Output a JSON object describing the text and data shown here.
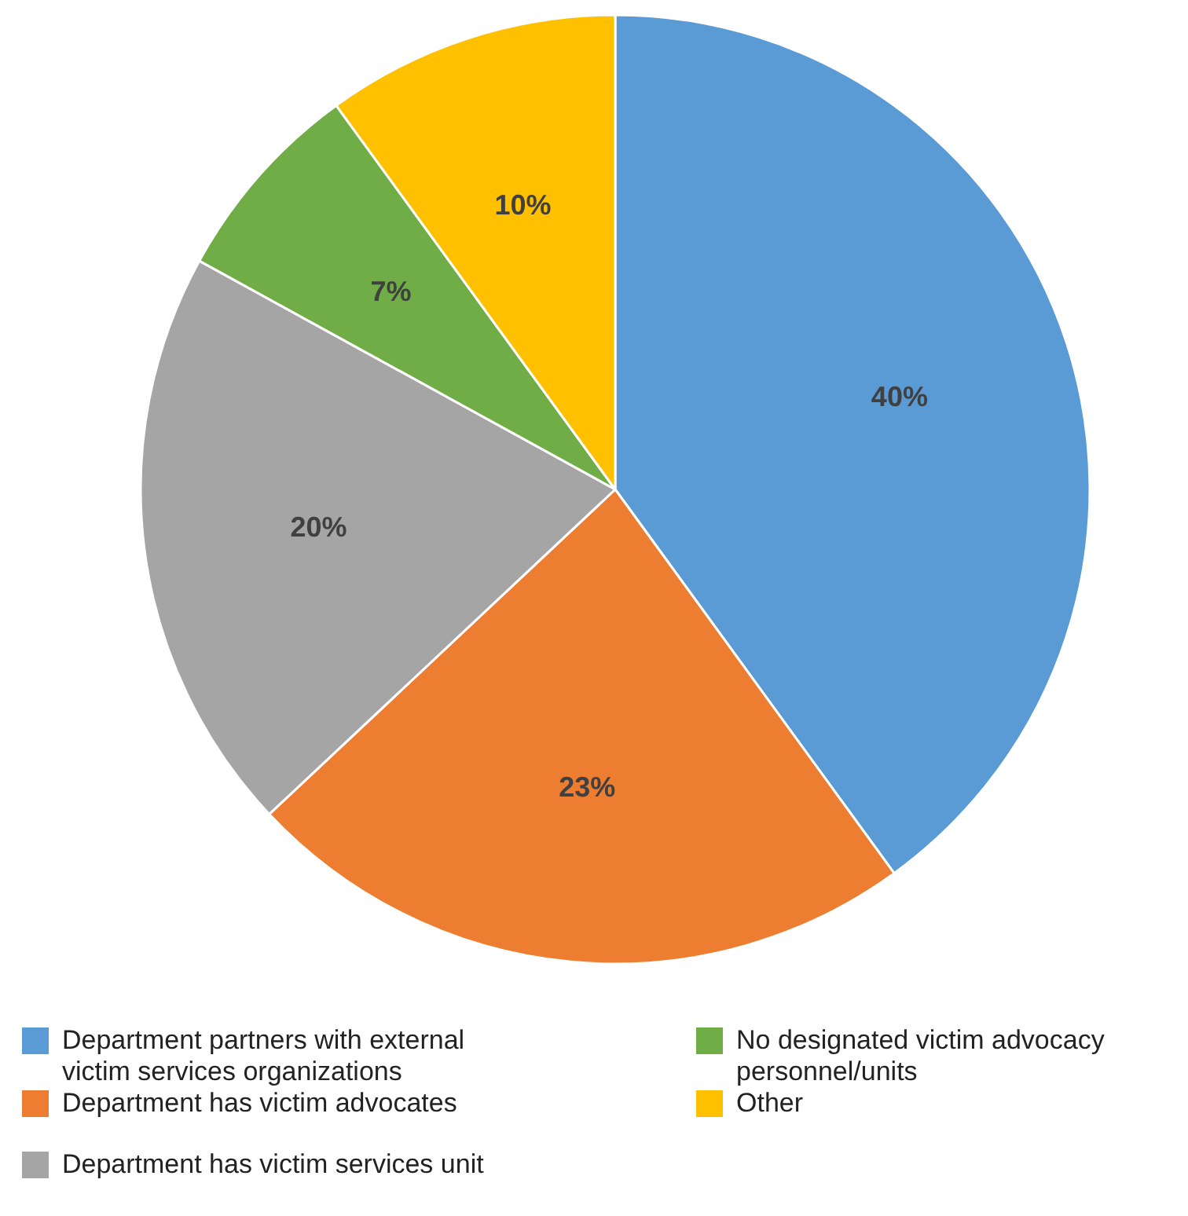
{
  "chart_data": {
    "type": "pie",
    "categories": [
      "Department partners with external victim services organizations",
      "Department has victim advocates",
      "Department has victim services unit",
      "No designated victim advocacy personnel/units",
      "Other"
    ],
    "values": [
      40,
      23,
      20,
      7,
      10
    ],
    "colors": [
      "#5b9bd5",
      "#ed7d31",
      "#a5a5a5",
      "#70ad47",
      "#ffc000"
    ],
    "value_labels": [
      "40%",
      "23%",
      "20%",
      "7%",
      "10%"
    ],
    "legend": "bottom"
  }
}
